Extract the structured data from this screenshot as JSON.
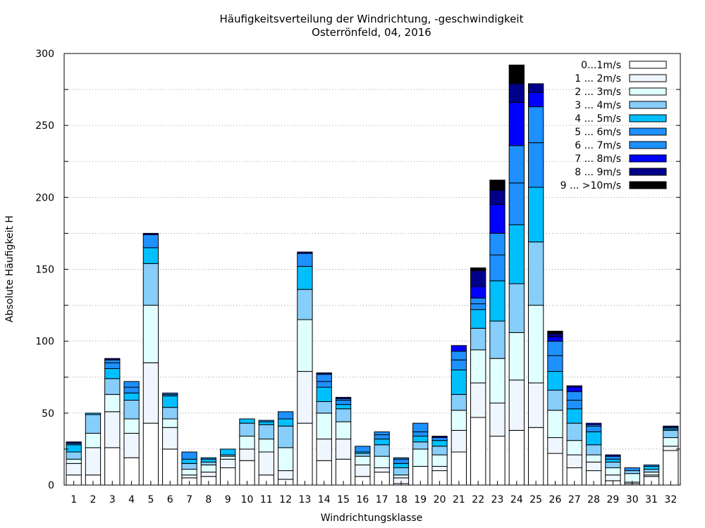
{
  "chart_data": {
    "type": "bar",
    "stacked": true,
    "title": "Häufigkeitsverteilung der Windrichtung, -geschwindigkeit",
    "subtitle": "Osterrönfeld, 04, 2016",
    "xlabel": "Windrichtungsklasse",
    "ylabel": "Absolute Häufigkeit H",
    "ylim": [
      0,
      300
    ],
    "yticks": [
      0,
      50,
      100,
      150,
      200,
      250,
      300
    ],
    "grid": true,
    "legend_position": "top-right",
    "categories": [
      "1",
      "2",
      "3",
      "4",
      "5",
      "6",
      "7",
      "8",
      "9",
      "10",
      "11",
      "12",
      "13",
      "14",
      "15",
      "16",
      "17",
      "18",
      "19",
      "20",
      "21",
      "22",
      "23",
      "24",
      "25",
      "26",
      "27",
      "28",
      "29",
      "30",
      "31",
      "32"
    ],
    "series": [
      {
        "name": "0...1m/s",
        "color": "#ffffff",
        "values": [
          7,
          7,
          26,
          19,
          43,
          25,
          5,
          6,
          12,
          17,
          7,
          4,
          43,
          17,
          18,
          6,
          9,
          1,
          13,
          10,
          23,
          47,
          34,
          38,
          40,
          22,
          12,
          10,
          3,
          1,
          6,
          24
        ]
      },
      {
        "name": "1 ... 2m/s",
        "color": "#f0f6ff",
        "values": [
          8,
          19,
          25,
          17,
          42,
          15,
          2,
          3,
          6,
          8,
          16,
          6,
          36,
          15,
          14,
          8,
          3,
          4,
          0,
          3,
          15,
          24,
          23,
          35,
          31,
          11,
          9,
          6,
          4,
          1,
          1,
          3
        ]
      },
      {
        "name": "2 ... 3m/s",
        "color": "#e0ffff",
        "values": [
          3,
          10,
          12,
          10,
          40,
          6,
          4,
          5,
          2,
          9,
          9,
          16,
          36,
          18,
          12,
          6,
          8,
          2,
          12,
          8,
          14,
          23,
          31,
          33,
          54,
          19,
          10,
          5,
          5,
          6,
          2,
          6
        ]
      },
      {
        "name": "3 ... 4m/s",
        "color": "#87cefa",
        "values": [
          5,
          13,
          11,
          13,
          29,
          8,
          4,
          2,
          1,
          9,
          10,
          15,
          21,
          8,
          9,
          2,
          8,
          5,
          5,
          6,
          11,
          15,
          26,
          34,
          44,
          14,
          12,
          7,
          4,
          2,
          2,
          5
        ]
      },
      {
        "name": "4 ... 5m/s",
        "color": "#00bfff",
        "values": [
          5,
          1,
          7,
          5,
          11,
          8,
          3,
          2,
          4,
          3,
          2,
          5,
          16,
          10,
          3,
          1,
          4,
          3,
          4,
          4,
          17,
          13,
          28,
          41,
          38,
          13,
          10,
          9,
          2,
          0,
          2,
          1
        ]
      },
      {
        "name": "5 ... 6m/s",
        "color": "#1e90ff",
        "values": [
          1,
          0,
          4,
          4,
          9,
          1,
          5,
          1,
          0,
          0,
          1,
          5,
          9,
          4,
          3,
          0,
          3,
          3,
          3,
          2,
          7,
          4,
          18,
          29,
          31,
          11,
          6,
          4,
          2,
          2,
          1,
          1
        ]
      },
      {
        "name": "6 ... 7m/s",
        "color": "#1e90ff",
        "values": [
          0,
          0,
          2,
          4,
          0,
          1,
          0,
          0,
          0,
          0,
          0,
          0,
          0,
          5,
          1,
          4,
          2,
          1,
          6,
          0,
          6,
          4,
          15,
          26,
          25,
          10,
          6,
          1,
          0,
          0,
          0,
          0
        ]
      },
      {
        "name": "7 ... 8m/s",
        "color": "#0000ff",
        "values": [
          0,
          0,
          0,
          0,
          0,
          0,
          0,
          0,
          0,
          0,
          0,
          0,
          0,
          0,
          0,
          0,
          0,
          0,
          0,
          0,
          4,
          8,
          20,
          30,
          10,
          3,
          3,
          1,
          0,
          0,
          0,
          0
        ]
      },
      {
        "name": "8 ... 9m/s",
        "color": "#00008b",
        "values": [
          1,
          0,
          1,
          0,
          1,
          0,
          0,
          0,
          0,
          0,
          0,
          0,
          1,
          1,
          1,
          0,
          0,
          0,
          0,
          1,
          0,
          11,
          10,
          13,
          6,
          2,
          1,
          0,
          1,
          0,
          0,
          1
        ]
      },
      {
        "name": "9 ... >10m/s",
        "color": "#000000",
        "values": [
          0,
          0,
          0,
          0,
          0,
          0,
          0,
          0,
          0,
          0,
          0,
          0,
          0,
          0,
          0,
          0,
          0,
          0,
          0,
          0,
          0,
          2,
          7,
          13,
          0,
          2,
          0,
          0,
          0,
          0,
          0,
          0
        ]
      }
    ]
  }
}
